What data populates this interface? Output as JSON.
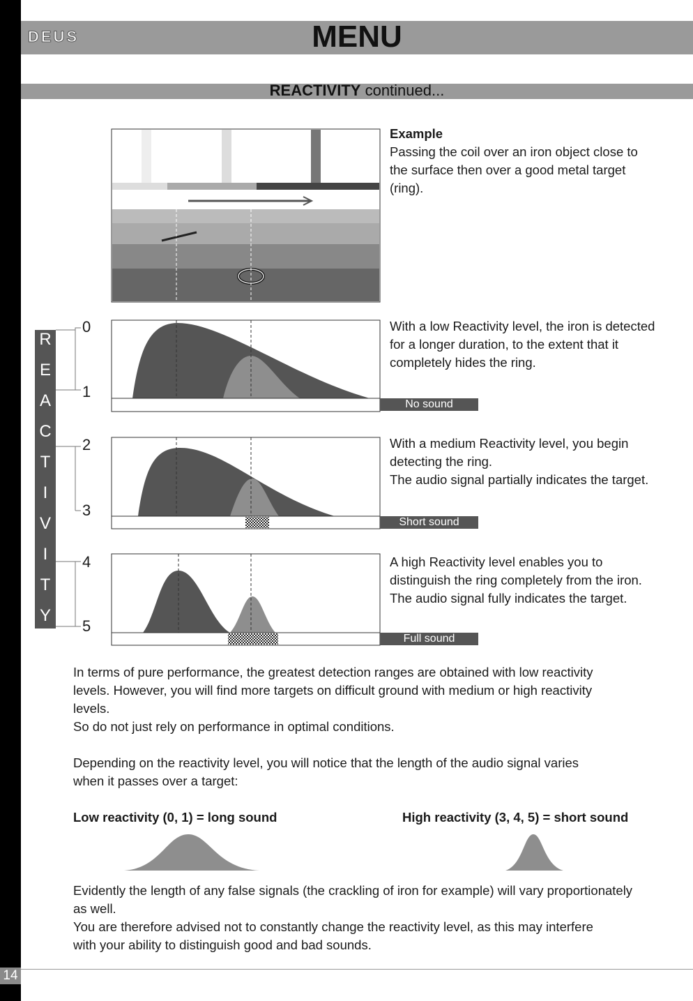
{
  "header": {
    "logo": "DEUS",
    "title": "MENU"
  },
  "section": {
    "title": "REACTIVITY",
    "subtitle": "continued..."
  },
  "example": {
    "heading": "Example",
    "lines": [
      "Passing the coil over an iron object close to",
      "the surface then over a good metal target",
      "(ring)."
    ]
  },
  "scale": {
    "letters": [
      "R",
      "E",
      "A",
      "C",
      "T",
      "I",
      "V",
      "I",
      "T",
      "Y"
    ],
    "levels": [
      "0",
      "1",
      "2",
      "3",
      "4",
      "5"
    ]
  },
  "panels": [
    {
      "lines": [
        "With a low Reactivity level, the iron is detected",
        "for a longer duration, to the extent that it",
        "completely hides the ring."
      ],
      "label": "No sound"
    },
    {
      "lines": [
        "With a medium Reactivity level, you begin",
        "detecting the ring.",
        "The audio signal partially indicates the target."
      ],
      "label": "Short sound"
    },
    {
      "lines": [
        "A high Reactivity level enables you to",
        "distinguish the ring completely from the iron.",
        "The audio signal fully indicates the target."
      ],
      "label": "Full sound"
    }
  ],
  "body": [
    [
      "In terms of pure performance, the greatest detection ranges are obtained with low reactivity",
      "levels. However, you will find more targets on difficult ground with medium or high reactivity",
      "levels.",
      "So do not just rely on performance in optimal conditions."
    ],
    [
      "Depending on the reactivity level, you will notice that the length of the audio signal varies",
      "when it passes over a target:"
    ]
  ],
  "comparison": {
    "low": "Low reactivity (0, 1) = long sound",
    "high": "High reactivity (3, 4, 5) = short sound"
  },
  "closing": [
    "Evidently the length of any false signals (the crackling of iron for example) will vary proportionately",
    "as well.",
    "You are therefore advised not to constantly change the reactivity level, as this may interfere",
    "with your ability to distinguish good and bad sounds."
  ],
  "page_number": "14"
}
